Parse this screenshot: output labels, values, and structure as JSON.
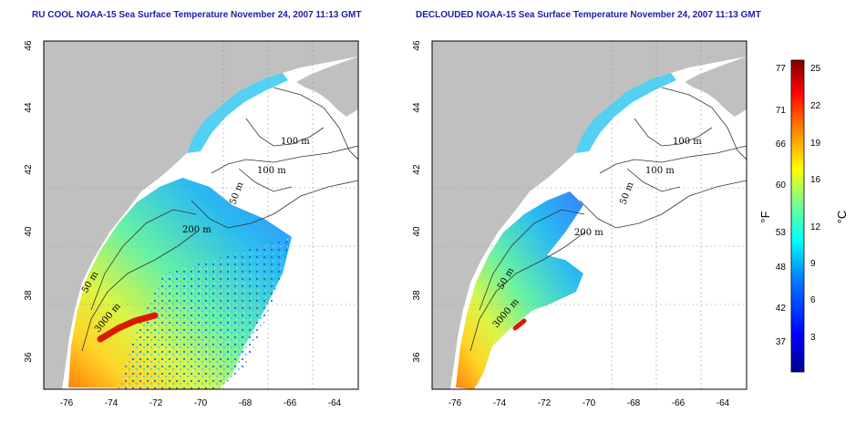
{
  "panels": [
    {
      "title": "RU COOL NOAA-15 Sea Surface Temperature November 24, 2007 11:13 GMT",
      "contour_labels": [
        "100 m",
        "100 m",
        "50 m",
        "200 m",
        "50 m",
        "3000 m"
      ]
    },
    {
      "title": "DECLOUDED NOAA-15 Sea Surface Temperature November 24, 2007 11:13 GMT",
      "contour_labels": [
        "100 m",
        "100 m",
        "50 m",
        "200 m",
        "50 m",
        "3000 m"
      ]
    }
  ],
  "axes": {
    "x_ticks": [
      "-76",
      "-74",
      "-72",
      "-70",
      "-68",
      "-66",
      "-64"
    ],
    "y_ticks": [
      "46",
      "44",
      "42",
      "40",
      "38",
      "36"
    ]
  },
  "colorbar": {
    "fahrenheit_ticks": [
      "77",
      "71",
      "66",
      "60",
      "53",
      "48",
      "42",
      "37"
    ],
    "celsius_ticks": [
      "25",
      "22",
      "19",
      "16",
      "12",
      "9",
      "6",
      "3"
    ],
    "fahrenheit_label": "°F",
    "celsius_label": "°C"
  },
  "colors": {
    "land": "#c0c0c0",
    "title": "#1b1bb0",
    "scale": [
      "#00008f",
      "#0000ff",
      "#0080ff",
      "#00ffff",
      "#80ff80",
      "#ffff00",
      "#ff8000",
      "#ff0000",
      "#800000"
    ]
  }
}
